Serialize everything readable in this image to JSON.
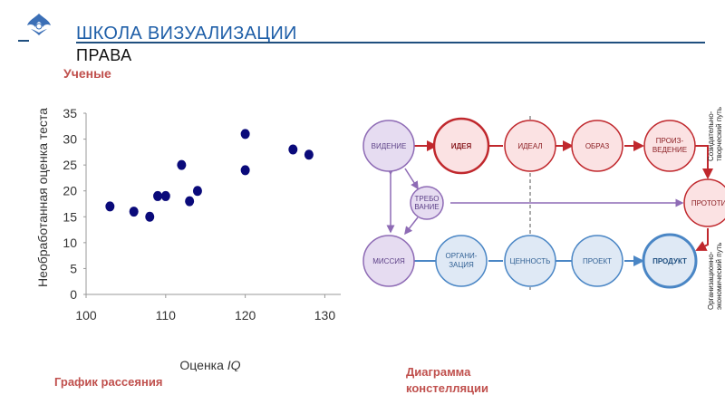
{
  "header": {
    "title": "ШКОЛА ВИЗУАЛИЗАЦИИ",
    "subtitle": "ПРАВА",
    "section_label": "Ученые"
  },
  "captions": {
    "scatter": "График рассеяния",
    "diagram": "Диаграмма констелляции"
  },
  "chart_data": {
    "type": "scatter",
    "xlabel": "Оценка IQ",
    "ylabel": "Необработанная оценка теста",
    "xlim": [
      100,
      132
    ],
    "ylim": [
      0,
      35
    ],
    "x_ticks": [
      100,
      110,
      120,
      130
    ],
    "y_ticks": [
      0,
      5,
      10,
      15,
      20,
      25,
      30,
      35
    ],
    "points": [
      {
        "x": 103,
        "y": 17
      },
      {
        "x": 106,
        "y": 16
      },
      {
        "x": 108,
        "y": 15
      },
      {
        "x": 109,
        "y": 19
      },
      {
        "x": 110,
        "y": 19
      },
      {
        "x": 112,
        "y": 25
      },
      {
        "x": 113,
        "y": 18
      },
      {
        "x": 114,
        "y": 20
      },
      {
        "x": 120,
        "y": 31
      },
      {
        "x": 120,
        "y": 24
      },
      {
        "x": 126,
        "y": 28
      },
      {
        "x": 128,
        "y": 27
      }
    ],
    "point_color": "#0a0a7a"
  },
  "diagram": {
    "nodes": {
      "videnie": "ВИДЕНИЕ",
      "ideya": "ИДЕЯ",
      "ideal": "ИДЕАЛ",
      "obraz": "ОБРАЗ",
      "proizvedenie_1": "ПРОИЗ-",
      "proizvedenie_2": "ВЕДЕНИЕ",
      "trebovanie_1": "ТРЕБО",
      "trebovanie_2": "ВАНИЕ",
      "prototip": "ПРОТОТИП",
      "missiya": "МИССИЯ",
      "organizaciya_1": "ОРГАНИ-",
      "organizaciya_2": "ЗАЦИЯ",
      "cennost": "ЦЕННОСТЬ",
      "proekt": "ПРОЕКТ",
      "produkt": "ПРОДУКТ"
    },
    "side_labels": {
      "top_1": "Созидательно-",
      "top_2": "творческий путь",
      "bottom_1": "Организационно-",
      "bottom_2": "экономический путь"
    },
    "colors": {
      "purple": "#8e6bb5",
      "purple_fill": "#e6dcf1",
      "red": "#c0282d",
      "red_fill": "#fbe2e3",
      "blue": "#4a86c5",
      "blue_fill": "#dfe9f5"
    }
  }
}
